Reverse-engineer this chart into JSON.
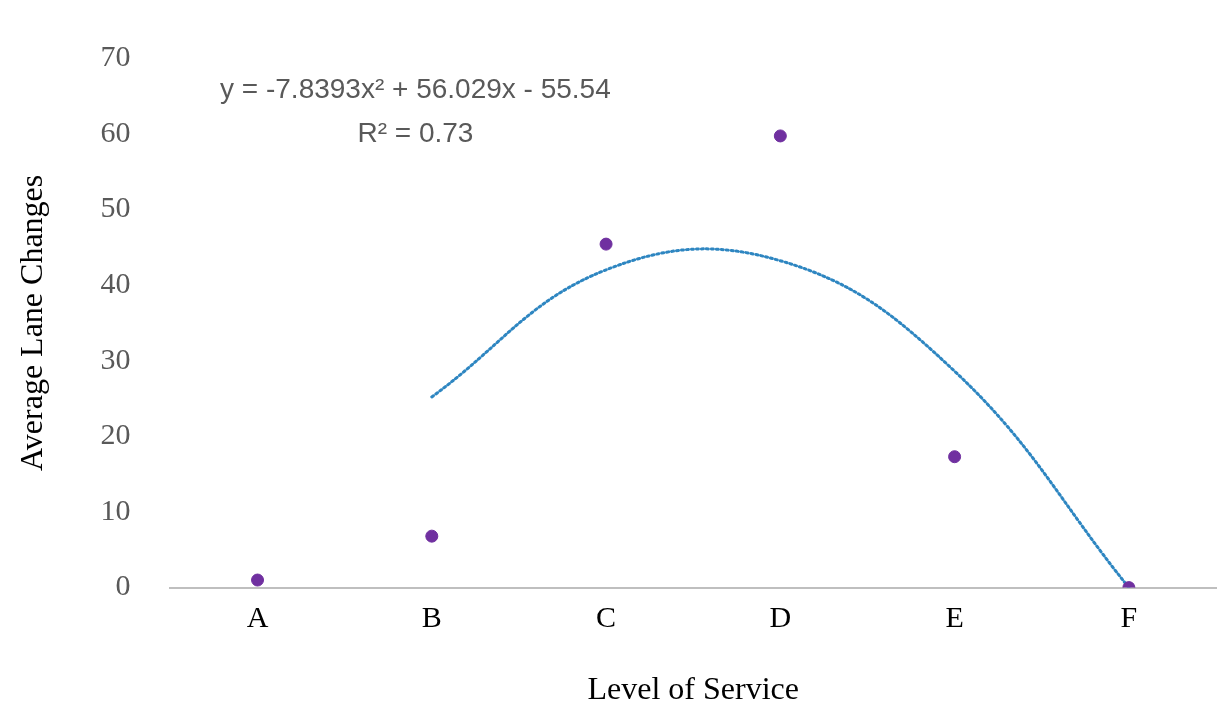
{
  "chart_data": {
    "type": "scatter",
    "xlabel": "Level of Service",
    "ylabel": "Average Lane Changes",
    "categories": [
      "A",
      "B",
      "C",
      "D",
      "E",
      "F"
    ],
    "ylim": [
      0,
      70
    ],
    "yticks": [
      0,
      10,
      20,
      30,
      40,
      50,
      60,
      70
    ],
    "series": [
      {
        "x": [
          "A",
          "B",
          "C",
          "D",
          "E",
          "F"
        ],
        "values": [
          1,
          6.8,
          45.4,
          59.7,
          17.3,
          0
        ],
        "color": "#7030a0",
        "marker": "circle"
      },
      {
        "type": "line",
        "values": [
          null,
          25.2,
          42,
          43.2,
          28.6,
          0
        ],
        "color": "#2e86c1",
        "line_style": "dotted",
        "marker": "none"
      }
    ],
    "annotations": [
      "y = -7.8393x² + 56.029x - 55.54",
      "R² = 0.73"
    ]
  }
}
